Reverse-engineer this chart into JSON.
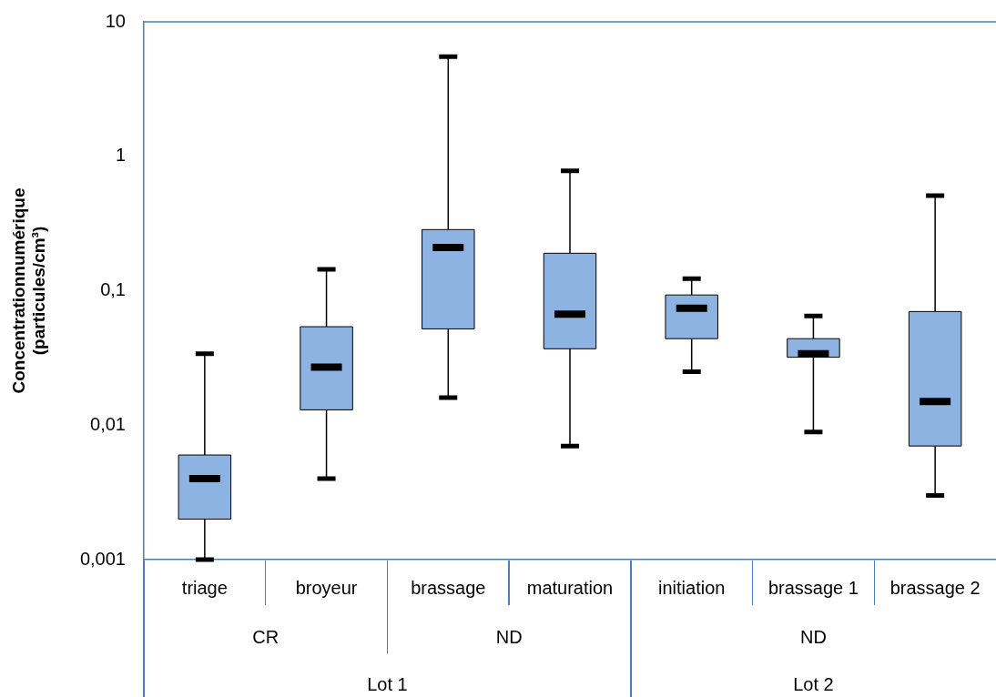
{
  "chart_data": {
    "type": "box",
    "ylabel": "Concentrationnumérique\n(particules/cm³)",
    "categories": [
      "triage",
      "broyeur",
      "brassage",
      "maturation",
      "initiation",
      "brassage 1",
      "brassage 2"
    ],
    "color": "#8db3e2",
    "log": true,
    "ylim": [
      0.001,
      10
    ],
    "yticks": [
      {
        "value": 0.001,
        "label": "0,001"
      },
      {
        "value": 0.01,
        "label": "0,01"
      },
      {
        "value": 0.1,
        "label": "0,1"
      },
      1,
      10
    ],
    "boxes": [
      {
        "low": 0.001,
        "q1": 0.002,
        "median": 0.004,
        "q3": 0.006,
        "high": 0.034
      },
      {
        "low": 0.004,
        "q1": 0.013,
        "median": 0.027,
        "q3": 0.054,
        "high": 0.144
      },
      {
        "low": 0.016,
        "q1": 0.052,
        "median": 0.21,
        "q3": 0.285,
        "high": 5.5
      },
      {
        "low": 0.007,
        "q1": 0.037,
        "median": 0.067,
        "q3": 0.19,
        "high": 0.78
      },
      {
        "low": 0.025,
        "q1": 0.044,
        "median": 0.074,
        "q3": 0.093,
        "high": 0.123
      },
      {
        "low": 0.0089,
        "q1": 0.032,
        "median": 0.034,
        "q3": 0.044,
        "high": 0.065
      },
      {
        "low": 0.003,
        "q1": 0.007,
        "median": 0.015,
        "q3": 0.07,
        "high": 0.51
      }
    ],
    "annotations": [
      "CR",
      "ND",
      "ND",
      "Lot 1",
      "Lot 2"
    ]
  }
}
